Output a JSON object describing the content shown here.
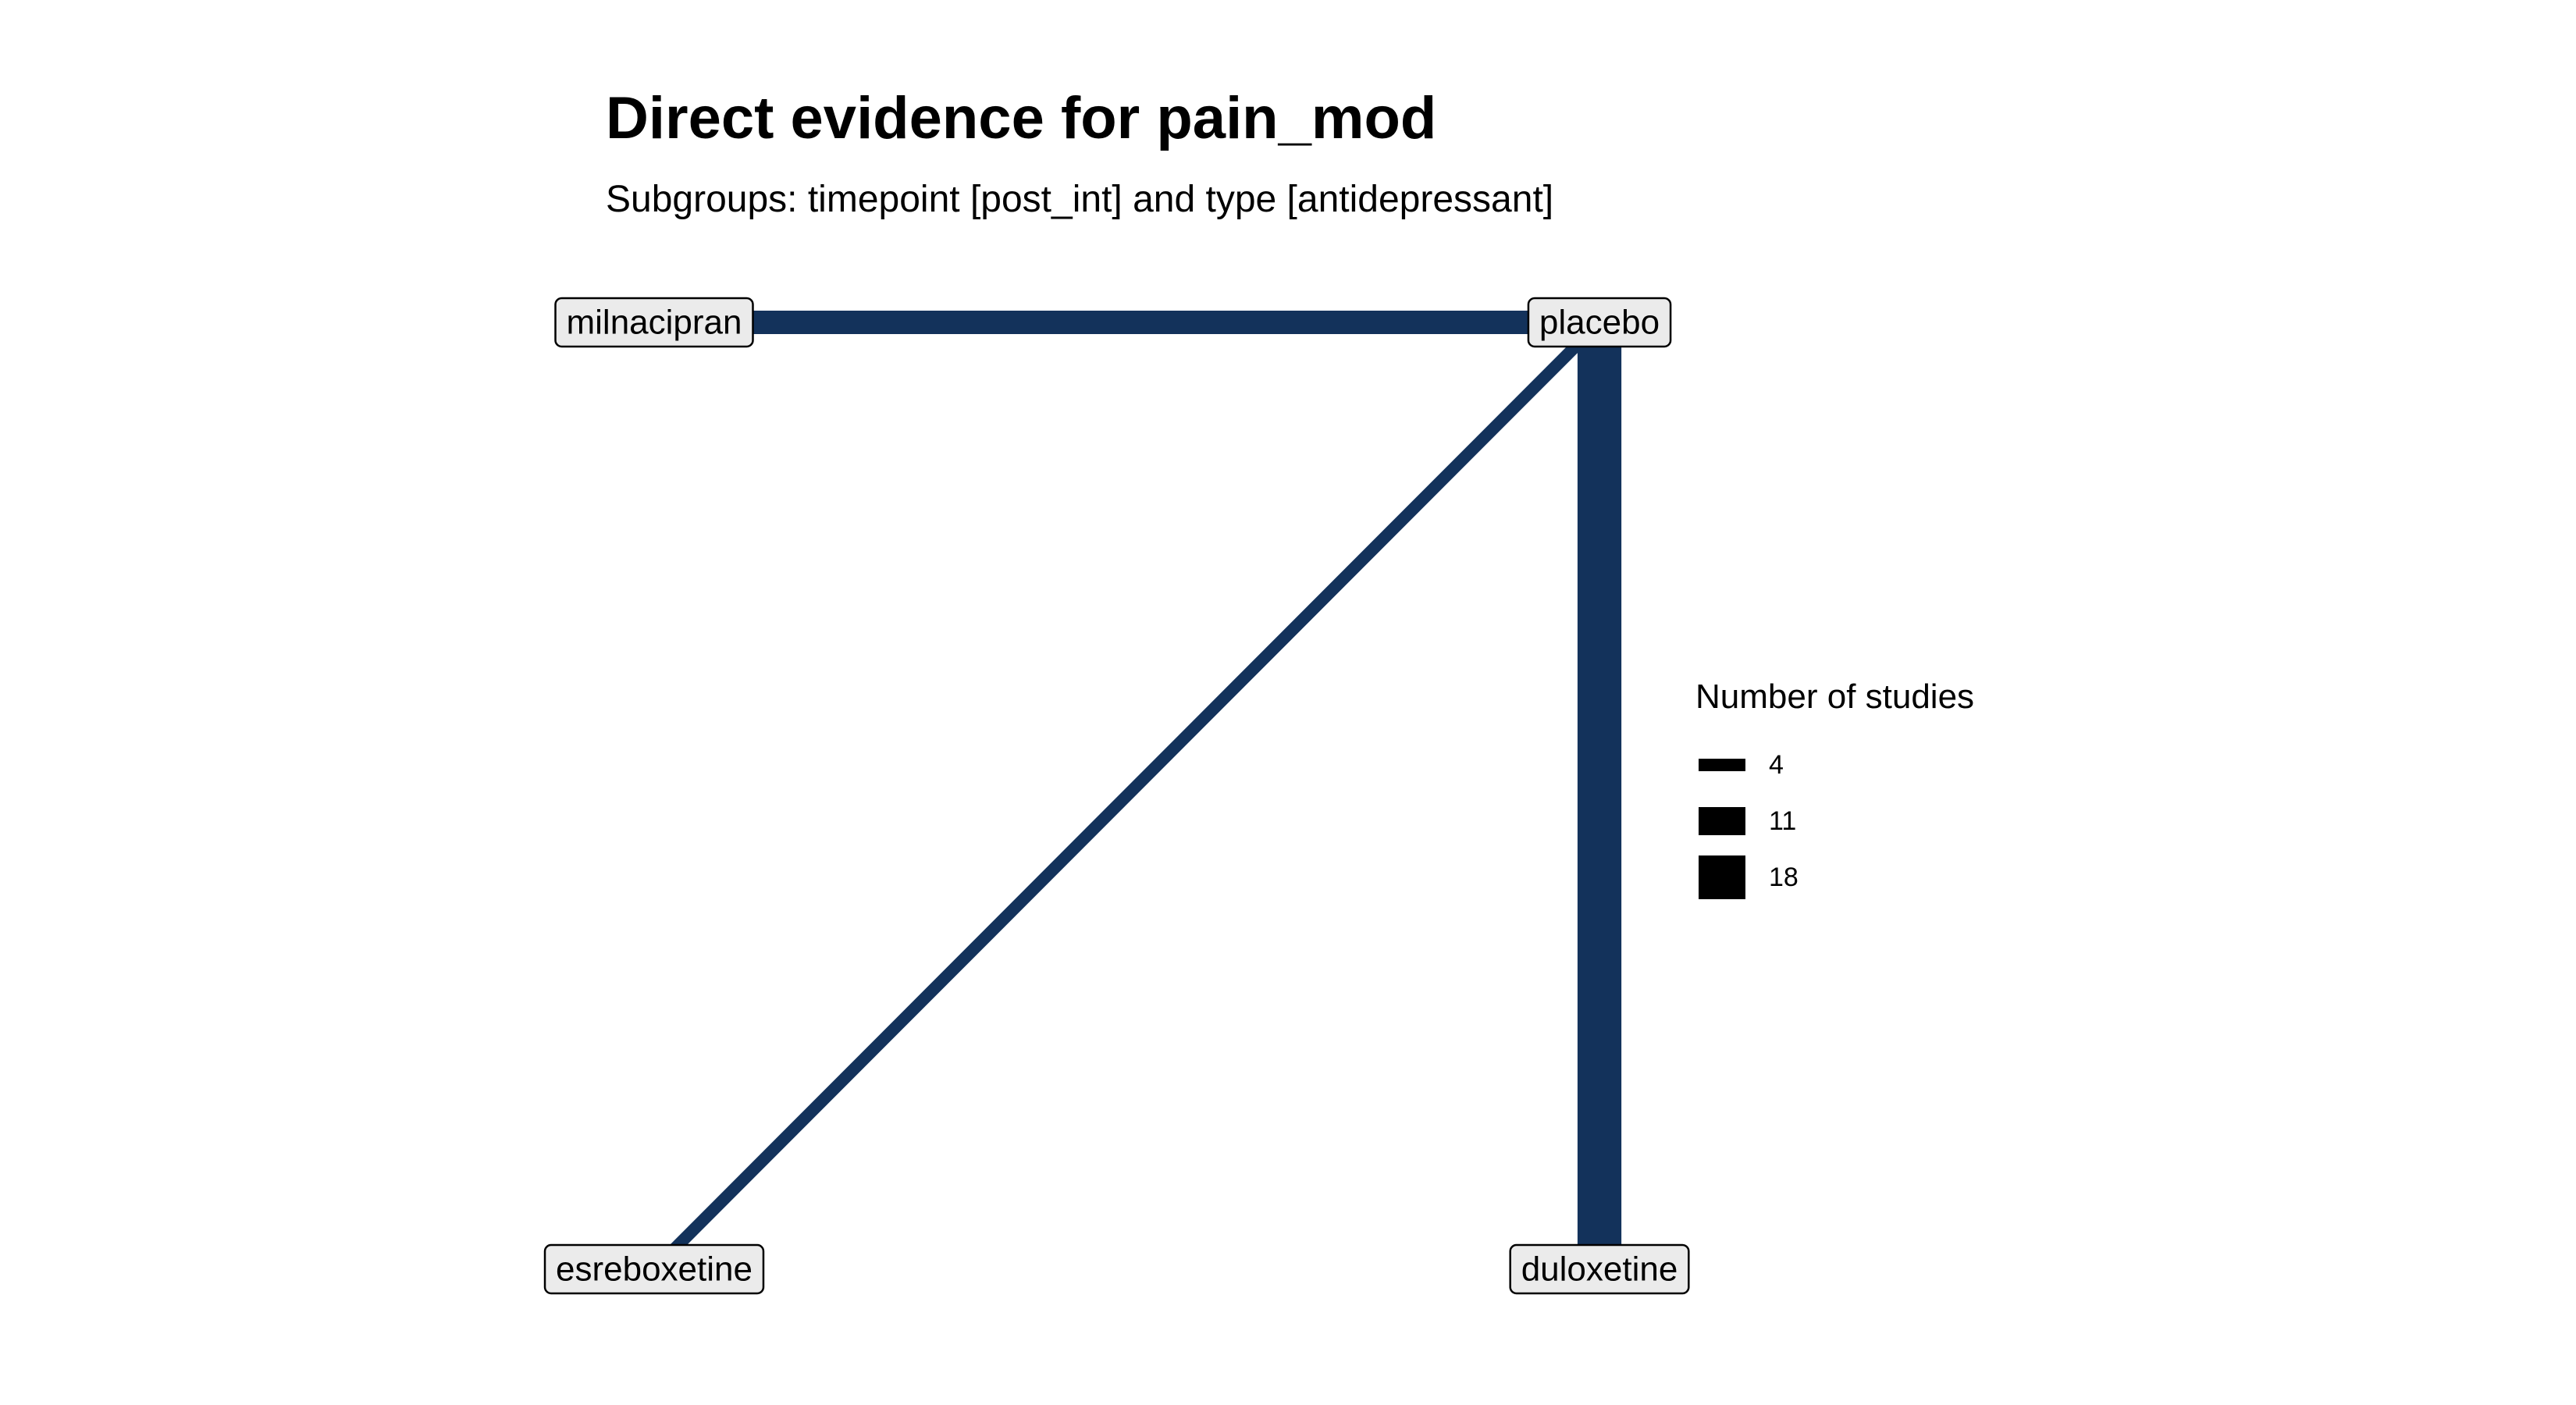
{
  "title": "Direct evidence for pain_mod",
  "subtitle": "Subgroups: timepoint [post_int] and type [antidepressant]",
  "colors": {
    "edge": "#13325b",
    "node_fill": "#ebebeb",
    "node_stroke": "#000000"
  },
  "nodes": [
    {
      "id": "milnacipran",
      "label": "milnacipran"
    },
    {
      "id": "placebo",
      "label": "placebo"
    },
    {
      "id": "esreboxetine",
      "label": "esreboxetine"
    },
    {
      "id": "duloxetine",
      "label": "duloxetine"
    }
  ],
  "edges": [
    {
      "from": "milnacipran",
      "to": "placebo",
      "studies": 9
    },
    {
      "from": "esreboxetine",
      "to": "placebo",
      "studies": 4
    },
    {
      "from": "duloxetine",
      "to": "placebo",
      "studies": 18
    }
  ],
  "legend": {
    "title": "Number of studies",
    "items": [
      {
        "label": "4",
        "value": 4
      },
      {
        "label": "11",
        "value": 11
      },
      {
        "label": "18",
        "value": 18
      }
    ]
  }
}
